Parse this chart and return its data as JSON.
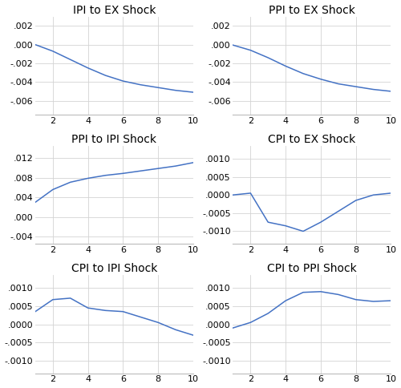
{
  "subplots": [
    {
      "title": "IPI to EX Shock",
      "x": [
        1,
        2,
        3,
        4,
        5,
        6,
        7,
        8,
        9,
        10
      ],
      "y": [
        0.0,
        -0.0007,
        -0.0016,
        -0.0025,
        -0.0033,
        -0.0039,
        -0.0043,
        -0.0046,
        -0.0049,
        -0.0051
      ],
      "ylim": [
        -0.0075,
        0.003
      ],
      "yticks": [
        0.002,
        0.0,
        -0.002,
        -0.004,
        -0.006
      ],
      "ytick_labels": [
        ".002",
        ".000",
        "-.002",
        "-.004",
        "-.006"
      ]
    },
    {
      "title": "PPI to EX Shock",
      "x": [
        1,
        2,
        3,
        4,
        5,
        6,
        7,
        8,
        9,
        10
      ],
      "y": [
        -5e-05,
        -0.0006,
        -0.0014,
        -0.0023,
        -0.0031,
        -0.0037,
        -0.0042,
        -0.0045,
        -0.0048,
        -0.005
      ],
      "ylim": [
        -0.0075,
        0.003
      ],
      "yticks": [
        0.002,
        0.0,
        -0.002,
        -0.004,
        -0.006
      ],
      "ytick_labels": [
        ".002",
        ".000",
        "-.002",
        "-.004",
        "-.006"
      ]
    },
    {
      "title": "PPI to IPI Shock",
      "x": [
        1,
        2,
        3,
        4,
        5,
        6,
        7,
        8,
        9,
        10
      ],
      "y": [
        0.003,
        0.0056,
        0.0071,
        0.0079,
        0.0085,
        0.0089,
        0.0094,
        0.0099,
        0.0104,
        0.0111
      ],
      "ylim": [
        -0.0055,
        0.0145
      ],
      "yticks": [
        0.012,
        0.008,
        0.004,
        0.0,
        -0.004
      ],
      "ytick_labels": [
        ".012",
        ".008",
        ".004",
        ".000",
        "-.004"
      ]
    },
    {
      "title": "CPI to EX Shock",
      "x": [
        1,
        2,
        3,
        4,
        5,
        6,
        7,
        8,
        9,
        10
      ],
      "y": [
        0.0,
        5e-05,
        -0.00075,
        -0.00085,
        -0.001,
        -0.00075,
        -0.00045,
        -0.00015,
        0.0,
        5e-05
      ],
      "ylim": [
        -0.00135,
        0.00135
      ],
      "yticks": [
        0.001,
        0.0005,
        0.0,
        -0.0005,
        -0.001
      ],
      "ytick_labels": [
        ".0010",
        ".0005",
        ".0000",
        "-.0005",
        "-.0010"
      ]
    },
    {
      "title": "CPI to IPI Shock",
      "x": [
        1,
        2,
        3,
        4,
        5,
        6,
        7,
        8,
        9,
        10
      ],
      "y": [
        0.00035,
        0.00068,
        0.00072,
        0.00045,
        0.00038,
        0.00035,
        0.0002,
        5e-05,
        -0.00015,
        -0.0003
      ],
      "ylim": [
        -0.00135,
        0.00135
      ],
      "yticks": [
        0.001,
        0.0005,
        0.0,
        -0.0005,
        -0.001
      ],
      "ytick_labels": [
        ".0010",
        ".0005",
        ".0000",
        "-.0005",
        "-.0010"
      ]
    },
    {
      "title": "CPI to PPI Shock",
      "x": [
        1,
        2,
        3,
        4,
        5,
        6,
        7,
        8,
        9,
        10
      ],
      "y": [
        -0.0001,
        5e-05,
        0.0003,
        0.00065,
        0.00088,
        0.0009,
        0.00082,
        0.00068,
        0.00063,
        0.00065
      ],
      "ylim": [
        -0.00135,
        0.00135
      ],
      "yticks": [
        0.001,
        0.0005,
        0.0,
        -0.0005,
        -0.001
      ],
      "ytick_labels": [
        ".0010",
        ".0005",
        ".0000",
        "-.0005",
        "-.0010"
      ]
    }
  ],
  "line_color": "#4472C4",
  "grid_color": "#D3D3D3",
  "bg_color": "#FFFFFF",
  "xticks": [
    2,
    4,
    6,
    8,
    10
  ],
  "title_fontsize": 10,
  "tick_fontsize": 8
}
